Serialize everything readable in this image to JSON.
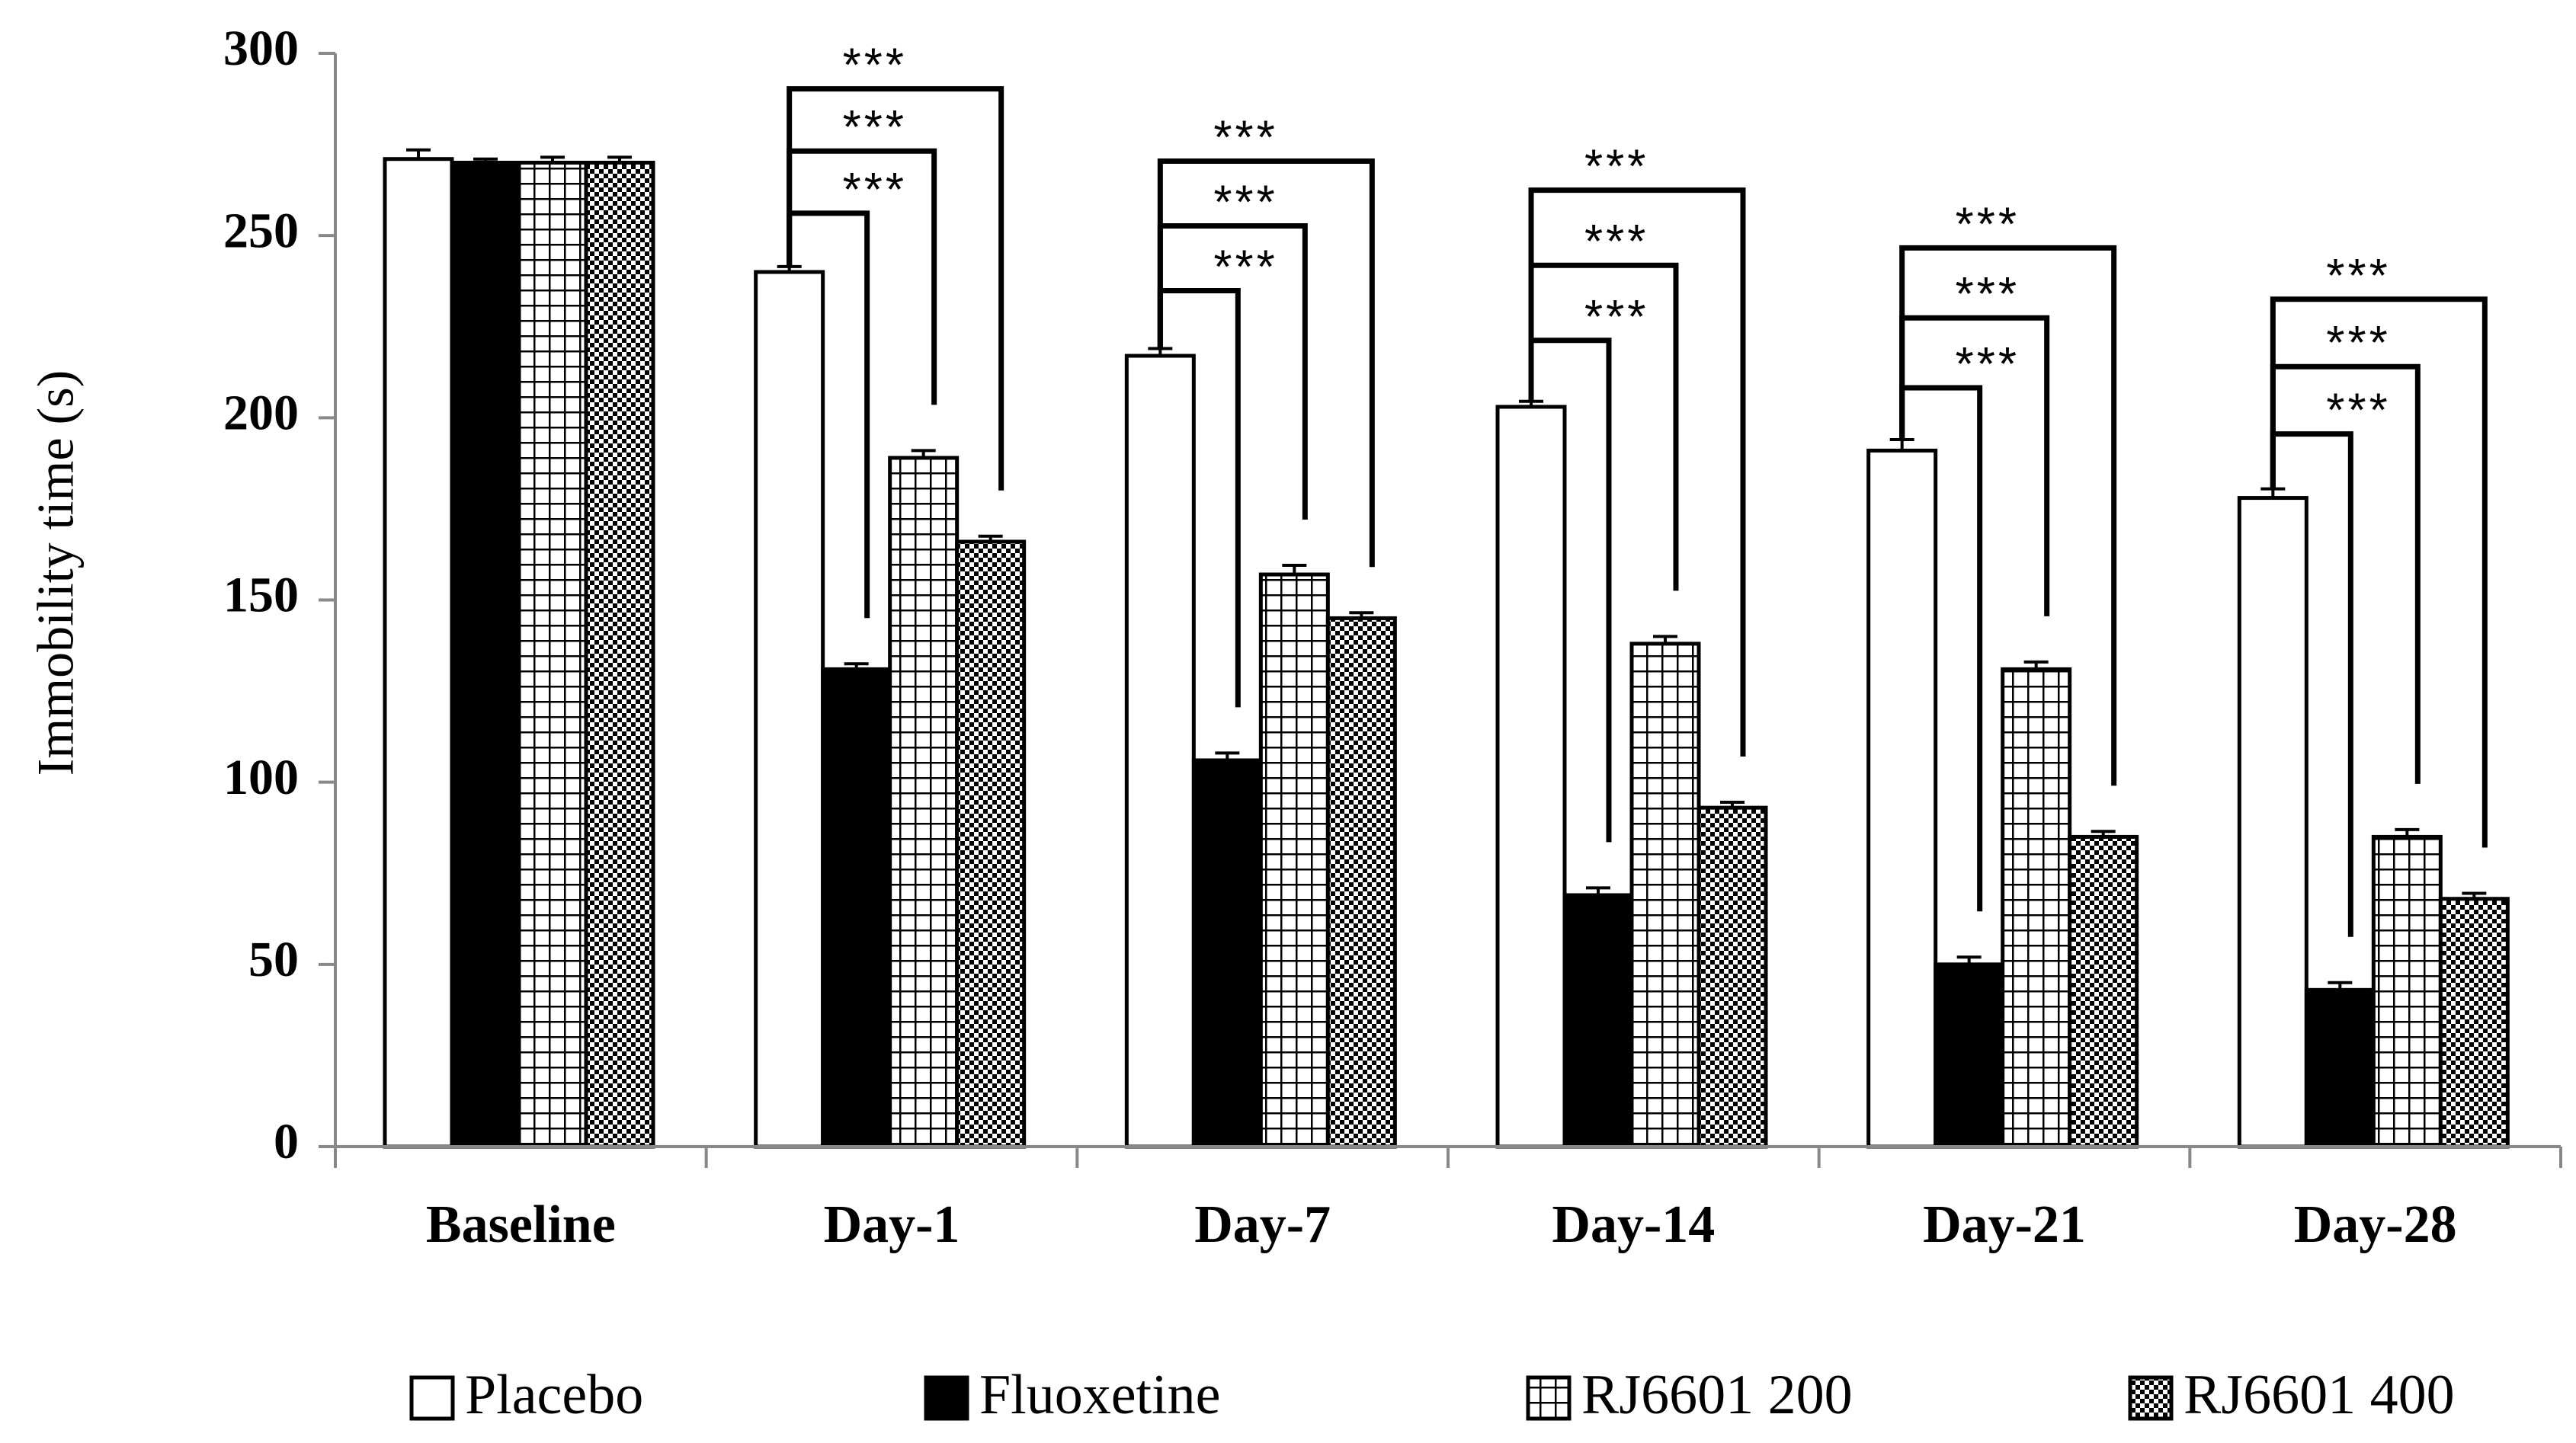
{
  "chart_data": {
    "type": "bar",
    "title": "",
    "xlabel": "",
    "ylabel": "Immobility time (s)",
    "ylim": [
      0,
      300
    ],
    "yticks": [
      0,
      50,
      100,
      150,
      200,
      250,
      300
    ],
    "grid": false,
    "legend_position": "bottom",
    "categories": [
      "Baseline",
      "Day-1",
      "Day-7",
      "Day-14",
      "Day-21",
      "Day-28"
    ],
    "series": [
      {
        "name": "Placebo",
        "pattern": "white",
        "values": [
          271,
          240,
          217,
          203,
          191,
          178
        ],
        "errors": [
          2.5,
          1.5,
          2,
          1.5,
          3,
          2.5
        ]
      },
      {
        "name": "Fluoxetine",
        "pattern": "black",
        "values": [
          270,
          131,
          106,
          69,
          50,
          43
        ],
        "errors": [
          1,
          1.5,
          2,
          2,
          2,
          2
        ]
      },
      {
        "name": "RJ6601 200",
        "pattern": "grid",
        "values": [
          270,
          189,
          157,
          138,
          131,
          85
        ],
        "errors": [
          1.5,
          2,
          2.5,
          2,
          2,
          2
        ]
      },
      {
        "name": "RJ6601 400",
        "pattern": "checker",
        "values": [
          270,
          166,
          145,
          93,
          85,
          68
        ],
        "errors": [
          1.5,
          1.5,
          1.5,
          1.5,
          1.5,
          1.5
        ]
      }
    ],
    "significance": [
      {
        "category": "Day-1",
        "label": "***",
        "comparisons": [
          "Fluoxetine",
          "RJ6601 200",
          "RJ6601 400"
        ]
      },
      {
        "category": "Day-7",
        "label": "***",
        "comparisons": [
          "Fluoxetine",
          "RJ6601 200",
          "RJ6601 400"
        ]
      },
      {
        "category": "Day-14",
        "label": "***",
        "comparisons": [
          "Fluoxetine",
          "RJ6601 200",
          "RJ6601 400"
        ]
      },
      {
        "category": "Day-21",
        "label": "***",
        "comparisons": [
          "Fluoxetine",
          "RJ6601 200",
          "RJ6601 400"
        ]
      },
      {
        "category": "Day-28",
        "label": "***",
        "comparisons": [
          "Fluoxetine",
          "RJ6601 200",
          "RJ6601 400"
        ]
      }
    ]
  }
}
